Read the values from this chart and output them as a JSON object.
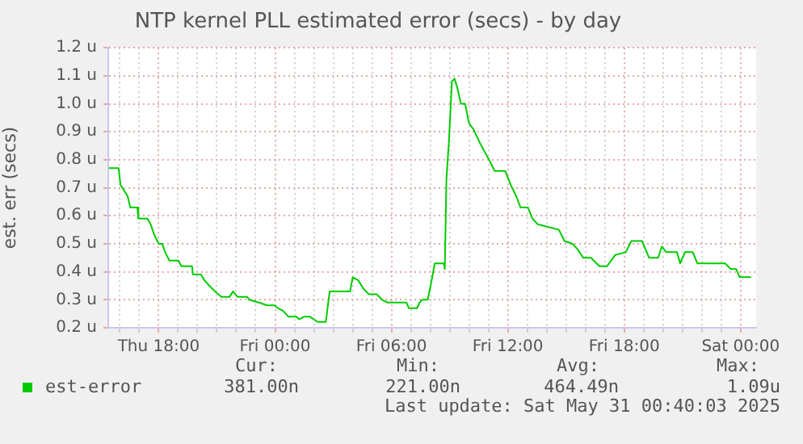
{
  "chart_data": {
    "type": "line",
    "title": "NTP kernel PLL estimated error (secs) - by day",
    "ylabel": "est. err (secs)",
    "xlim": [
      "2025-05-29T15:24",
      "2025-05-31T00:48"
    ],
    "xticks": [
      {
        "value": "2025-05-29T16:00",
        "label": null
      },
      {
        "value": "2025-05-29T17:00",
        "label": null
      },
      {
        "value": "2025-05-29T18:00",
        "label": "Thu 18:00"
      },
      {
        "value": "2025-05-29T19:00",
        "label": null
      },
      {
        "value": "2025-05-29T20:00",
        "label": null
      },
      {
        "value": "2025-05-29T21:00",
        "label": null
      },
      {
        "value": "2025-05-29T22:00",
        "label": null
      },
      {
        "value": "2025-05-29T23:00",
        "label": null
      },
      {
        "value": "2025-05-30T00:00",
        "label": "Fri 00:00"
      },
      {
        "value": "2025-05-30T01:00",
        "label": null
      },
      {
        "value": "2025-05-30T02:00",
        "label": null
      },
      {
        "value": "2025-05-30T03:00",
        "label": null
      },
      {
        "value": "2025-05-30T04:00",
        "label": null
      },
      {
        "value": "2025-05-30T05:00",
        "label": null
      },
      {
        "value": "2025-05-30T06:00",
        "label": "Fri 06:00"
      },
      {
        "value": "2025-05-30T07:00",
        "label": null
      },
      {
        "value": "2025-05-30T08:00",
        "label": null
      },
      {
        "value": "2025-05-30T09:00",
        "label": null
      },
      {
        "value": "2025-05-30T10:00",
        "label": null
      },
      {
        "value": "2025-05-30T11:00",
        "label": null
      },
      {
        "value": "2025-05-30T12:00",
        "label": "Fri 12:00"
      },
      {
        "value": "2025-05-30T13:00",
        "label": null
      },
      {
        "value": "2025-05-30T14:00",
        "label": null
      },
      {
        "value": "2025-05-30T15:00",
        "label": null
      },
      {
        "value": "2025-05-30T16:00",
        "label": null
      },
      {
        "value": "2025-05-30T17:00",
        "label": null
      },
      {
        "value": "2025-05-30T18:00",
        "label": "Fri 18:00"
      },
      {
        "value": "2025-05-30T19:00",
        "label": null
      },
      {
        "value": "2025-05-30T20:00",
        "label": null
      },
      {
        "value": "2025-05-30T21:00",
        "label": null
      },
      {
        "value": "2025-05-30T22:00",
        "label": null
      },
      {
        "value": "2025-05-30T23:00",
        "label": null
      },
      {
        "value": "2025-05-31T00:00",
        "label": "Sat 00:00"
      }
    ],
    "ylim": [
      0.2,
      1.2
    ],
    "yticks": [
      {
        "value": 0.2,
        "label": "0.2 u"
      },
      {
        "value": 0.3,
        "label": "0.3 u"
      },
      {
        "value": 0.4,
        "label": "0.4 u"
      },
      {
        "value": 0.5,
        "label": "0.5 u"
      },
      {
        "value": 0.6,
        "label": "0.6 u"
      },
      {
        "value": 0.7,
        "label": "0.7 u"
      },
      {
        "value": 0.8,
        "label": "0.8 u"
      },
      {
        "value": 0.9,
        "label": "0.9 u"
      },
      {
        "value": 1.0,
        "label": "1.0 u"
      },
      {
        "value": 1.1,
        "label": "1.1 u"
      },
      {
        "value": 1.2,
        "label": "1.2 u"
      }
    ],
    "grid": true,
    "legend": "bottom left",
    "annotations": [
      "Cur:",
      "Min:",
      "Avg:",
      "Max:",
      "381.00n",
      "221.00n",
      "464.49n",
      "1.09u",
      "Last update: Sat May 31 00:40:03 2025"
    ],
    "series": [
      {
        "name": "est-error",
        "color": "#00cc00",
        "x": [
          "2025-05-29T15:26",
          "2025-05-29T15:56",
          "2025-05-29T16:02",
          "2025-05-29T16:24",
          "2025-05-29T16:32",
          "2025-05-29T16:54",
          "2025-05-29T16:57",
          "2025-05-29T17:25",
          "2025-05-29T17:35",
          "2025-05-29T17:47",
          "2025-05-29T18:00",
          "2025-05-29T18:11",
          "2025-05-29T18:20",
          "2025-05-29T18:33",
          "2025-05-29T19:01",
          "2025-05-29T19:10",
          "2025-05-29T19:43",
          "2025-05-29T19:46",
          "2025-05-29T20:11",
          "2025-05-29T20:21",
          "2025-05-29T20:37",
          "2025-05-29T20:54",
          "2025-05-29T21:14",
          "2025-05-29T21:39",
          "2025-05-29T21:50",
          "2025-05-29T22:04",
          "2025-05-29T22:34",
          "2025-05-29T22:40",
          "2025-05-29T23:10",
          "2025-05-29T23:35",
          "2025-05-29T23:59",
          "2025-05-30T00:08",
          "2025-05-30T00:25",
          "2025-05-30T00:41",
          "2025-05-30T01:06",
          "2025-05-30T01:14",
          "2025-05-30T01:31",
          "2025-05-30T01:47",
          "2025-05-30T02:12",
          "2025-05-30T02:37",
          "2025-05-30T02:49",
          "2025-05-30T03:52",
          "2025-05-30T04:00",
          "2025-05-30T04:17",
          "2025-05-30T04:33",
          "2025-05-30T04:50",
          "2025-05-30T05:14",
          "2025-05-30T05:31",
          "2025-05-30T05:48",
          "2025-05-30T06:46",
          "2025-05-30T06:54",
          "2025-05-30T07:19",
          "2025-05-30T07:27",
          "2025-05-30T07:35",
          "2025-05-30T07:52",
          "2025-05-30T08:01",
          "2025-05-30T08:14",
          "2025-05-30T08:42",
          "2025-05-30T08:45",
          "2025-05-30T08:50",
          "2025-05-30T08:58",
          "2025-05-30T09:07",
          "2025-05-30T09:15",
          "2025-05-30T09:23",
          "2025-05-30T09:35",
          "2025-05-30T09:48",
          "2025-05-30T10:00",
          "2025-05-30T10:13",
          "2025-05-30T10:38",
          "2025-05-30T11:02",
          "2025-05-30T11:19",
          "2025-05-30T11:52",
          "2025-05-30T12:09",
          "2025-05-30T12:26",
          "2025-05-30T12:39",
          "2025-05-30T13:02",
          "2025-05-30T13:16",
          "2025-05-30T13:32",
          "2025-05-30T14:38",
          "2025-05-30T14:55",
          "2025-05-30T15:20",
          "2025-05-30T15:36",
          "2025-05-30T15:53",
          "2025-05-30T16:17",
          "2025-05-30T16:43",
          "2025-05-30T17:07",
          "2025-05-30T17:32",
          "2025-05-30T18:05",
          "2025-05-30T18:22",
          "2025-05-30T18:55",
          "2025-05-30T19:17",
          "2025-05-30T19:45",
          "2025-05-30T19:56",
          "2025-05-30T20:10",
          "2025-05-30T20:43",
          "2025-05-30T20:53",
          "2025-05-30T21:08",
          "2025-05-30T21:32",
          "2025-05-30T21:46",
          "2025-05-30T22:06",
          "2025-05-30T23:12",
          "2025-05-30T23:29",
          "2025-05-30T23:46",
          "2025-05-30T23:57",
          "2025-05-31T00:32"
        ],
        "values": [
          0.77,
          0.77,
          0.71,
          0.67,
          0.63,
          0.63,
          0.59,
          0.59,
          0.57,
          0.53,
          0.5,
          0.5,
          0.47,
          0.44,
          0.44,
          0.42,
          0.42,
          0.39,
          0.39,
          0.37,
          0.35,
          0.33,
          0.31,
          0.31,
          0.33,
          0.31,
          0.31,
          0.3,
          0.29,
          0.28,
          0.28,
          0.27,
          0.26,
          0.24,
          0.24,
          0.23,
          0.24,
          0.24,
          0.221,
          0.221,
          0.33,
          0.33,
          0.38,
          0.37,
          0.34,
          0.32,
          0.32,
          0.3,
          0.29,
          0.29,
          0.27,
          0.27,
          0.29,
          0.3,
          0.3,
          0.35,
          0.43,
          0.43,
          0.41,
          0.73,
          0.87,
          1.08,
          1.09,
          1.06,
          1.0,
          1.0,
          0.93,
          0.91,
          0.85,
          0.8,
          0.76,
          0.76,
          0.71,
          0.67,
          0.63,
          0.63,
          0.59,
          0.57,
          0.55,
          0.51,
          0.5,
          0.48,
          0.45,
          0.45,
          0.42,
          0.42,
          0.46,
          0.47,
          0.51,
          0.51,
          0.45,
          0.45,
          0.49,
          0.47,
          0.47,
          0.43,
          0.47,
          0.47,
          0.43,
          0.43,
          0.43,
          0.41,
          0.41,
          0.381,
          0.381
        ]
      }
    ]
  }
}
